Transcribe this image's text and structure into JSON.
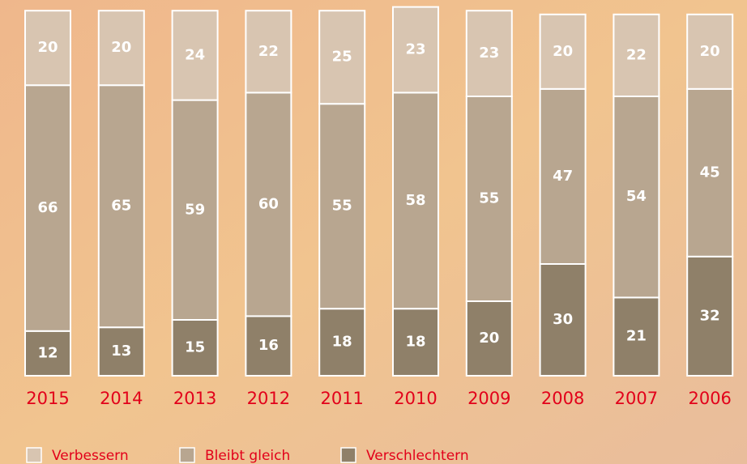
{
  "chart_data": {
    "type": "stacked_bar",
    "categories": [
      "2015",
      "2014",
      "2013",
      "2012",
      "2011",
      "2010",
      "2009",
      "2008",
      "2007",
      "2006"
    ],
    "series": [
      {
        "name": "Verschlechtern",
        "color": "#8f8069",
        "values": [
          12,
          13,
          15,
          16,
          18,
          18,
          20,
          30,
          21,
          32
        ]
      },
      {
        "name": "Bleibt gleich",
        "color": "#b8a690",
        "values": [
          66,
          65,
          59,
          60,
          55,
          58,
          55,
          47,
          54,
          45
        ]
      },
      {
        "name": "Verbessern",
        "color": "#d8c5b1",
        "values": [
          20,
          20,
          24,
          22,
          25,
          23,
          23,
          20,
          22,
          20
        ]
      }
    ],
    "legend_order": [
      2,
      1,
      0
    ]
  }
}
